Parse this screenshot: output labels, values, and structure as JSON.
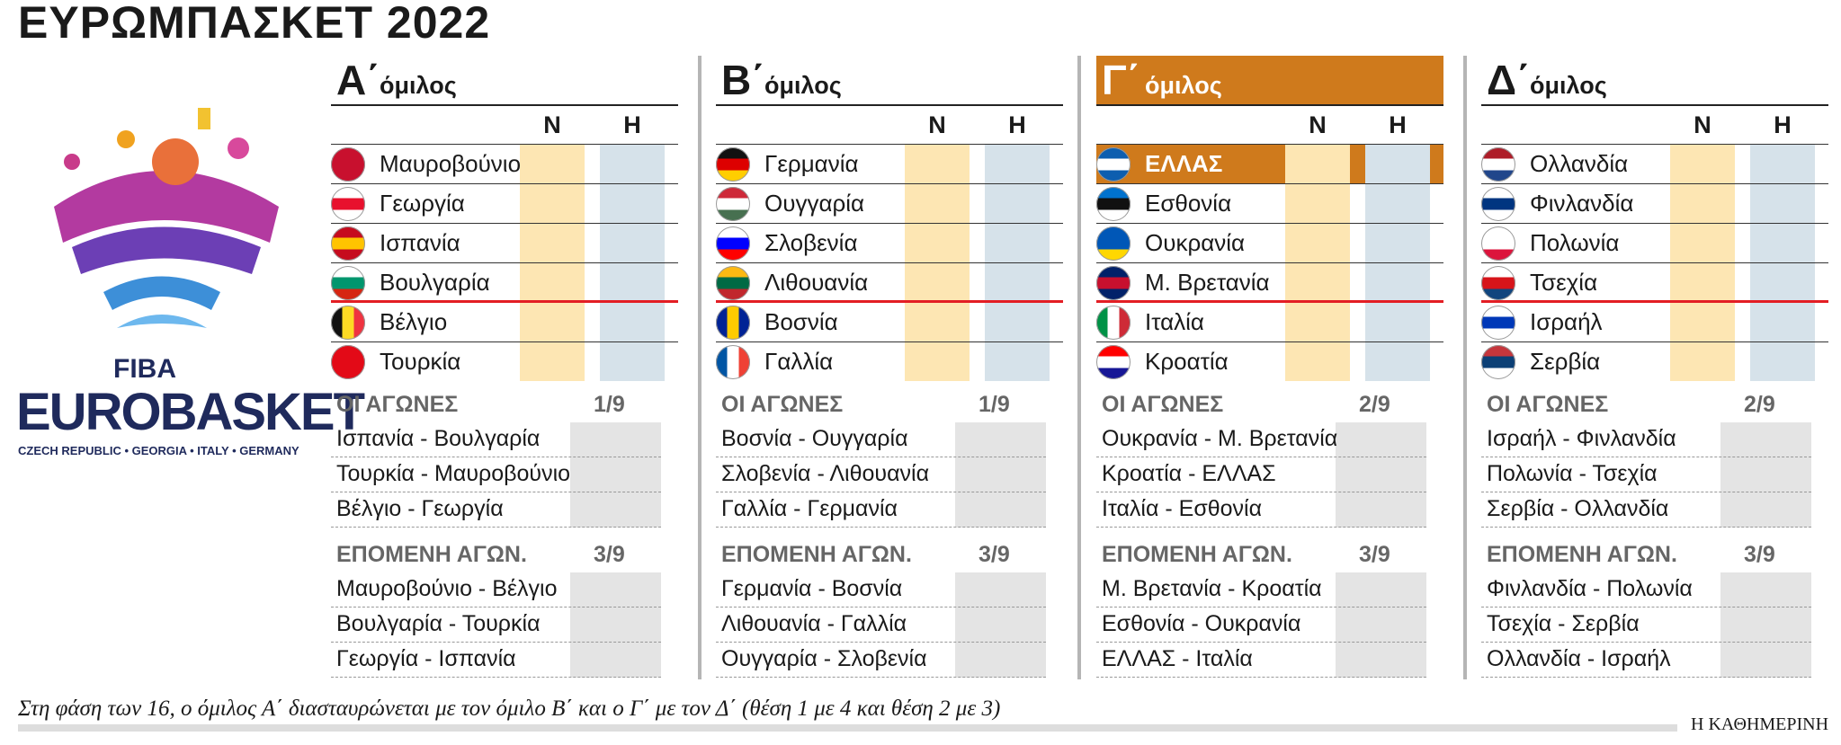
{
  "title": "ΕΥΡΩΜΠΑΣΚΕΤ 2022",
  "logo": {
    "brand": "FIBA",
    "name": "EUROBASKET",
    "hosts": "CZECH REPUBLIC • GEORGIA • ITALY • GERMANY"
  },
  "columns": [
    "Ν",
    "Η"
  ],
  "matches_label": "ΟΙ ΑΓΩΝΕΣ",
  "next_label": "ΕΠΟΜΕΝΗ ΑΓΩΝ.",
  "groups": [
    {
      "letter": "Α΄",
      "name": "όμιλος",
      "highlighted": false,
      "teams": [
        "Μαυροβούνιο",
        "Γεωργία",
        "Ισπανία",
        "Βουλγαρία",
        "Βέλγιο",
        "Τουρκία"
      ],
      "matches_date": "1/9",
      "matches": [
        "Ισπανία - Βουλγαρία",
        "Τουρκία - Μαυροβούνιο",
        "Βέλγιο - Γεωργία"
      ],
      "next_date": "3/9",
      "next": [
        "Μαυροβούνιο - Βέλγιο",
        "Βουλγαρία - Τουρκία",
        "Γεωργία - Ισπανία"
      ]
    },
    {
      "letter": "Β΄",
      "name": "όμιλος",
      "highlighted": false,
      "teams": [
        "Γερμανία",
        "Ουγγαρία",
        "Σλοβενία",
        "Λιθουανία",
        "Βοσνία",
        "Γαλλία"
      ],
      "matches_date": "1/9",
      "matches": [
        "Βοσνία - Ουγγαρία",
        "Σλοβενία - Λιθουανία",
        "Γαλλία - Γερμανία"
      ],
      "next_date": "3/9",
      "next": [
        "Γερμανία - Βοσνία",
        "Λιθουανία - Γαλλία",
        "Ουγγαρία - Σλοβενία"
      ]
    },
    {
      "letter": "Γ΄",
      "name": "όμιλος",
      "highlighted": true,
      "highlight_team": 0,
      "teams": [
        "ΕΛΛΑΣ",
        "Εσθονία",
        "Ουκρανία",
        "Μ. Βρετανία",
        "Ιταλία",
        "Κροατία"
      ],
      "matches_date": "2/9",
      "matches": [
        "Ουκρανία - Μ. Βρετανία",
        "Κροατία - ΕΛΛΑΣ",
        "Ιταλία - Εσθονία"
      ],
      "next_date": "3/9",
      "next": [
        "Μ. Βρετανία - Κροατία",
        "Εσθονία - Ουκρανία",
        "ΕΛΛΑΣ - Ιταλία"
      ]
    },
    {
      "letter": "Δ΄",
      "name": "όμιλος",
      "highlighted": false,
      "teams": [
        "Ολλανδία",
        "Φινλανδία",
        "Πολωνία",
        "Τσεχία",
        "Ισραήλ",
        "Σερβία"
      ],
      "matches_date": "2/9",
      "matches": [
        "Ισραήλ - Φινλανδία",
        "Πολωνία - Τσεχία",
        "Σερβία - Ολλανδία"
      ],
      "next_date": "3/9",
      "next": [
        "Φινλανδία - Πολωνία",
        "Τσεχία - Σερβία",
        "Ολλανδία - Ισραήλ"
      ]
    }
  ],
  "footnote": "Στη φάση των 16, ο όμιλος Α΄ διασταυρώνεται με τον όμιλο Β΄ και ο Γ΄ με τον Δ΄ (θέση 1 με 4 και θέση 2 με 3)",
  "source": "Η ΚΑΘΗΜΕΡΙΝΗ"
}
